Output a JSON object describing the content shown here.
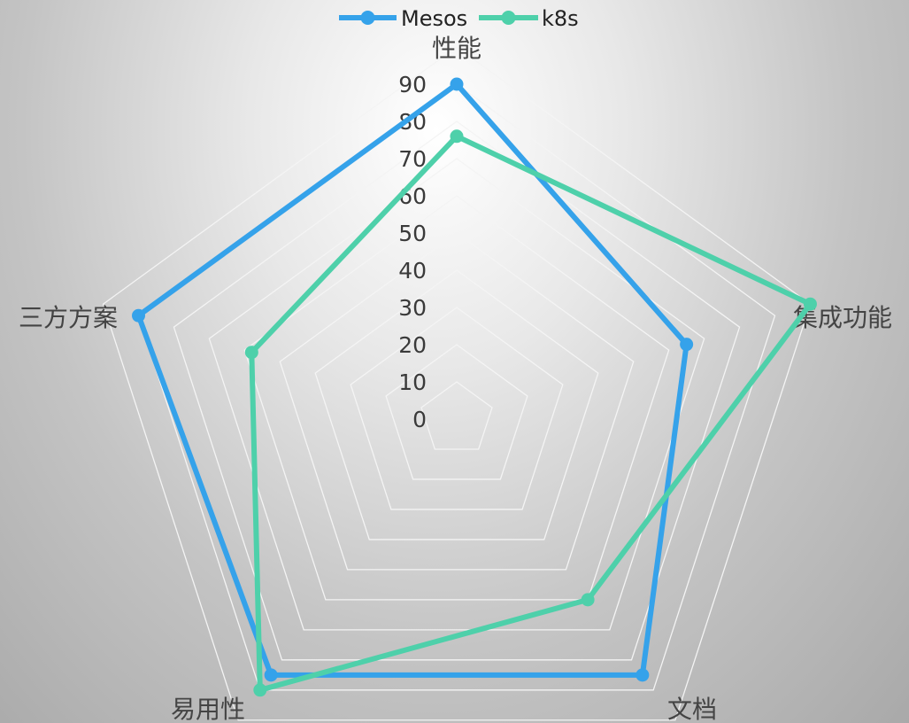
{
  "chart_data": {
    "type": "radar",
    "categories": [
      "性能",
      "集成功能",
      "文档",
      "易用性",
      "三方方案"
    ],
    "series": [
      {
        "name": "Mesos",
        "values": [
          90,
          65,
          85,
          85,
          90
        ],
        "color": "#35a2ea"
      },
      {
        "name": "k8s",
        "values": [
          76,
          100,
          60,
          90,
          58
        ],
        "color": "#4ed0aa"
      }
    ],
    "radial_ticks": [
      "0",
      "10",
      "20",
      "30",
      "40",
      "50",
      "60",
      "70",
      "80",
      "90"
    ],
    "rlim": [
      0,
      100
    ],
    "grid": true,
    "legend_position": "top"
  }
}
